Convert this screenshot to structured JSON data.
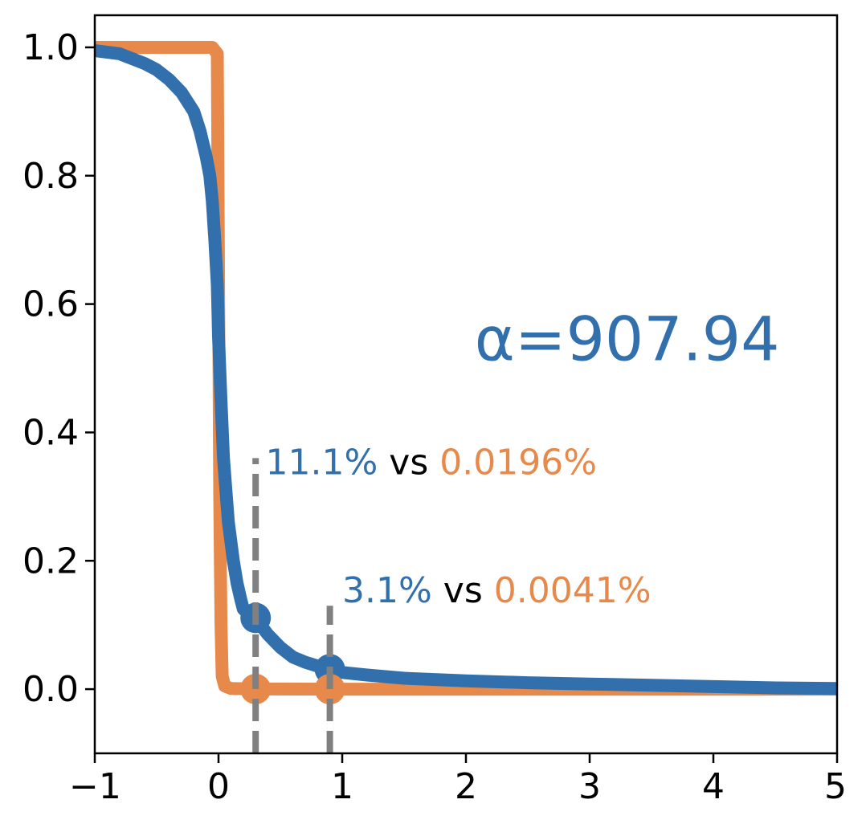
{
  "chart_data": {
    "type": "line",
    "title": "",
    "xlabel": "",
    "ylabel": "",
    "xlim": [
      -1,
      5
    ],
    "ylim": [
      -0.1,
      1.05
    ],
    "xticks": [
      -1,
      0,
      1,
      2,
      3,
      4,
      5
    ],
    "yticks": [
      0.0,
      0.2,
      0.4,
      0.6,
      0.8,
      1.0
    ],
    "xtick_labels": [
      "−1",
      "0",
      "1",
      "2",
      "3",
      "4",
      "5"
    ],
    "ytick_labels": [
      "0.0",
      "0.2",
      "0.4",
      "0.6",
      "0.8",
      "1.0"
    ],
    "grid": false,
    "colors": {
      "blue": "#3170ac",
      "orange": "#e6894a",
      "guide": "#808080",
      "text": "#000000"
    },
    "series": [
      {
        "color": "#3170ac",
        "x": [
          -1.0,
          -0.8,
          -0.6,
          -0.5,
          -0.4,
          -0.3,
          -0.2,
          -0.15,
          -0.1,
          -0.07,
          -0.05,
          -0.03,
          -0.01,
          0.0,
          0.02,
          0.04,
          0.06,
          0.08,
          0.1,
          0.12,
          0.15,
          0.18,
          0.2,
          0.25,
          0.3,
          0.4,
          0.5,
          0.6,
          0.7,
          0.8,
          0.9,
          1.0,
          1.2,
          1.5,
          2.0,
          2.5,
          3.0,
          3.5,
          4.0,
          4.5,
          5.0
        ],
        "y": [
          0.995,
          0.99,
          0.975,
          0.965,
          0.95,
          0.93,
          0.9,
          0.87,
          0.83,
          0.8,
          0.76,
          0.7,
          0.63,
          0.55,
          0.45,
          0.36,
          0.31,
          0.26,
          0.23,
          0.2,
          0.165,
          0.14,
          0.125,
          0.115,
          0.11,
          0.085,
          0.065,
          0.05,
          0.042,
          0.036,
          0.031,
          0.026,
          0.022,
          0.017,
          0.013,
          0.01,
          0.008,
          0.006,
          0.004,
          0.002,
          0.001
        ]
      },
      {
        "color": "#e6894a",
        "x": [
          -1.0,
          -0.05,
          -0.03,
          -0.01,
          0.0,
          0.01,
          0.02,
          0.03,
          0.05,
          0.1,
          0.3,
          0.9,
          2.0,
          5.0
        ],
        "y": [
          1.0,
          1.0,
          0.995,
          0.99,
          0.65,
          0.3,
          0.1,
          0.02,
          0.005,
          0.001,
          0.0002,
          4e-05,
          0.0,
          0.0
        ]
      }
    ],
    "markers": [
      {
        "x": 0.3,
        "y": 0.111,
        "color": "#3170ac"
      },
      {
        "x": 0.9,
        "y": 0.031,
        "color": "#3170ac"
      },
      {
        "x": 0.3,
        "y": 0.0002,
        "color": "#e6894a"
      },
      {
        "x": 0.9,
        "y": 4e-05,
        "color": "#e6894a"
      }
    ],
    "guides": [
      {
        "x": 0.3,
        "y_top": 0.36
      },
      {
        "x": 0.9,
        "y_top": 0.13
      }
    ],
    "annotations": [
      {
        "x": 0.38,
        "y": 0.355,
        "parts": [
          {
            "text": "11.1%",
            "color": "#3170ac"
          },
          {
            "text": " vs ",
            "color": "#000000"
          },
          {
            "text": "0.0196%",
            "color": "#e6894a"
          }
        ]
      },
      {
        "x": 1.0,
        "y": 0.155,
        "parts": [
          {
            "text": "3.1%",
            "color": "#3170ac"
          },
          {
            "text": " vs ",
            "color": "#000000"
          },
          {
            "text": "0.0041%",
            "color": "#e6894a"
          }
        ]
      }
    ],
    "alpha_label": {
      "text": "α=907.94",
      "color": "#3170ac",
      "x": 2.2,
      "y": 0.55
    }
  }
}
